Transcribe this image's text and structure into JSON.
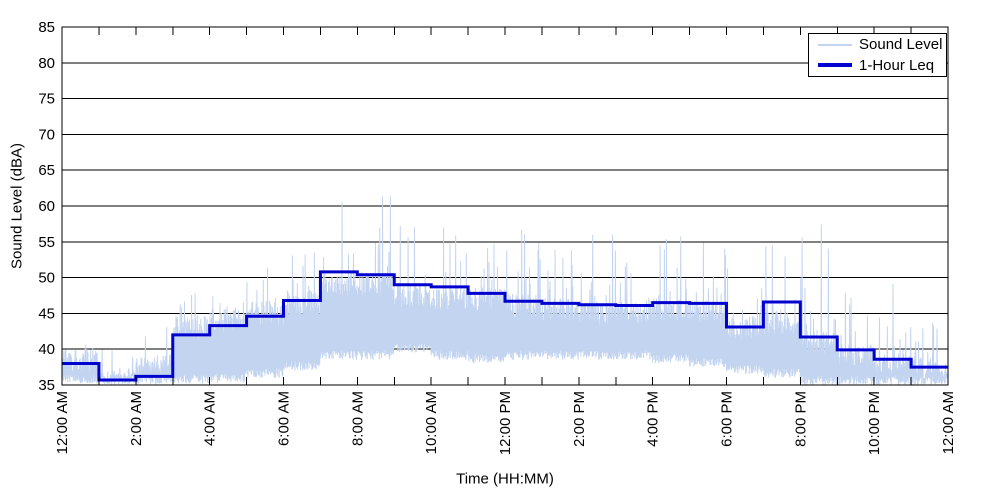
{
  "figure": {
    "background": "#ffffff"
  },
  "chart_data": {
    "type": "line",
    "title": "",
    "xlabel": "Time (HH:MM)",
    "ylabel": "Sound Level (dBA)",
    "ylim": [
      35,
      85
    ],
    "ytick_step": 5,
    "x_hours_span": 24,
    "xtick_label_every_hours": 2,
    "xtick_labels": [
      "12:00 AM",
      "2:00 AM",
      "4:00 AM",
      "6:00 AM",
      "8:00 AM",
      "10:00 AM",
      "12:00 PM",
      "2:00 PM",
      "4:00 PM",
      "6:00 PM",
      "8:00 PM",
      "10:00 PM",
      "12:00 AM"
    ],
    "grid": true,
    "axis_color": "#000000",
    "legend": {
      "position": "top-right",
      "entries": [
        {
          "label": "Sound Level",
          "color": "#c3d4f0",
          "stroke_width": 2
        },
        {
          "label": "1-Hour Leq",
          "color": "#0202ce",
          "stroke_width": 4
        }
      ]
    },
    "series": [
      {
        "name": "Sound Level",
        "style": "noisy-line",
        "color": "#c3d4f0",
        "hourly_envelope": {
          "hours": [
            0,
            1,
            2,
            3,
            4,
            5,
            6,
            7,
            8,
            9,
            10,
            11,
            12,
            13,
            14,
            15,
            16,
            17,
            18,
            19,
            20,
            21,
            22,
            23
          ],
          "min": [
            35.2,
            35.0,
            35.0,
            35.2,
            35.3,
            36.0,
            37.0,
            38.5,
            38.5,
            39.5,
            38.5,
            38.0,
            38.5,
            38.5,
            38.5,
            38.5,
            38.0,
            37.5,
            36.5,
            36.0,
            35.0,
            35.0,
            35.0,
            35.0
          ],
          "typical": [
            39.3,
            36.3,
            38.5,
            44.0,
            45.0,
            46.0,
            47.5,
            50.0,
            50.0,
            48.5,
            48.0,
            48.0,
            47.0,
            46.5,
            46.0,
            46.0,
            46.5,
            46.0,
            44.0,
            44.5,
            42.0,
            40.0,
            39.0,
            38.0
          ],
          "peak": [
            41.0,
            40.0,
            46.5,
            48.0,
            50.0,
            51.5,
            55.5,
            62.5,
            61.5,
            62.0,
            57.5,
            57.0,
            57.0,
            55.0,
            56.0,
            55.0,
            56.0,
            55.0,
            52.0,
            55.0,
            58.3,
            48.0,
            51.0,
            44.0
          ]
        }
      },
      {
        "name": "1-Hour Leq",
        "style": "step",
        "color": "#0202ce",
        "hourly_values": [
          38.0,
          35.7,
          36.2,
          42.0,
          43.3,
          44.6,
          46.8,
          50.8,
          50.4,
          49.0,
          48.7,
          47.8,
          46.7,
          46.4,
          46.2,
          46.1,
          46.5,
          46.4,
          43.1,
          46.6,
          41.7,
          39.9,
          38.6,
          37.5
        ]
      }
    ]
  }
}
